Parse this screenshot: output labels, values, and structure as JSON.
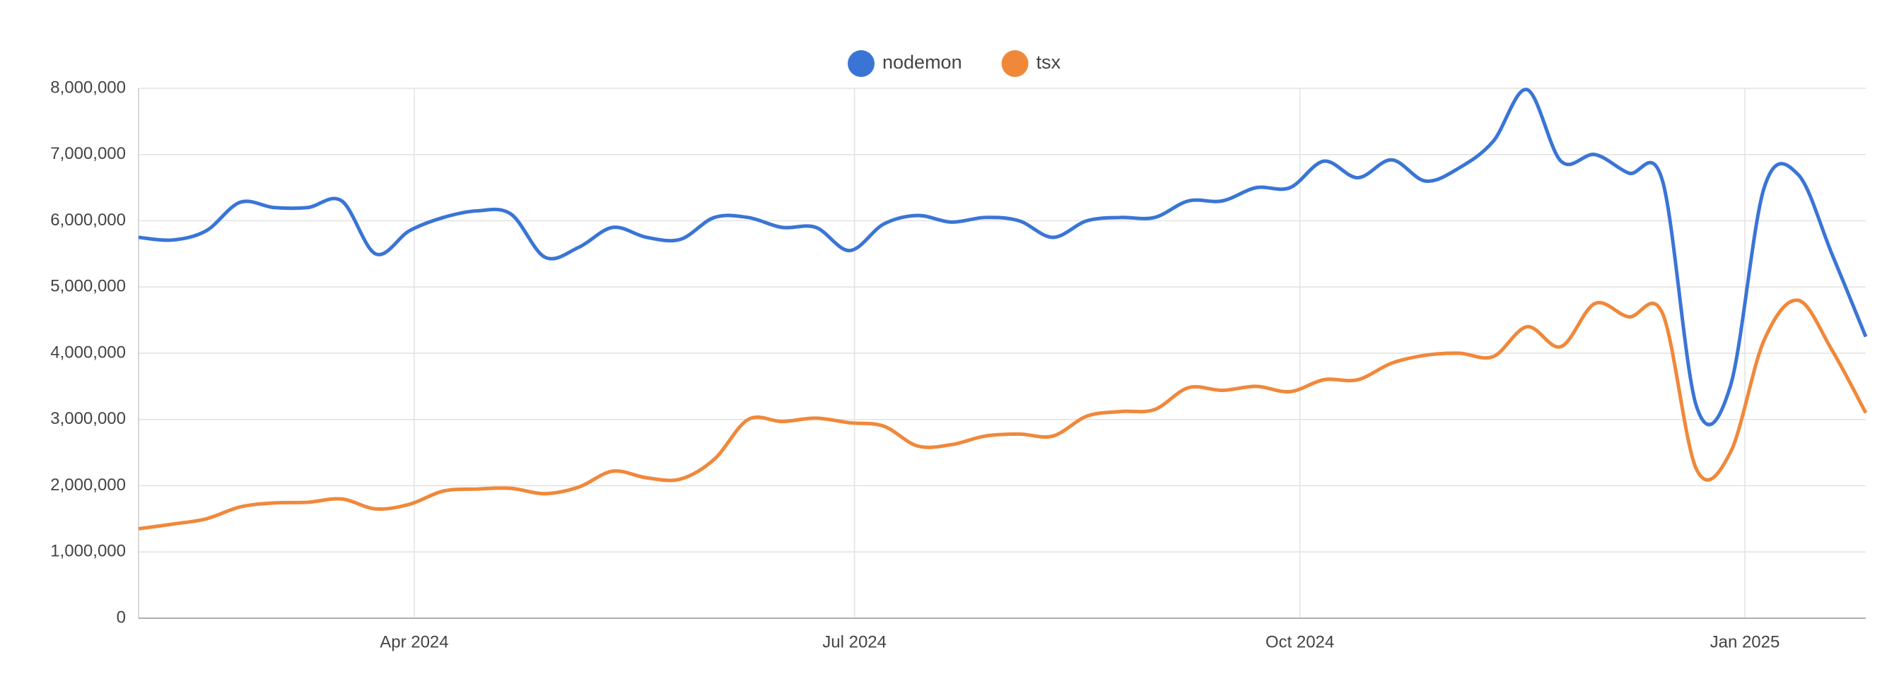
{
  "chart_data": {
    "type": "line",
    "categories": [
      null,
      null,
      null,
      null,
      null,
      null,
      null,
      null,
      null,
      null,
      null,
      null,
      null,
      null,
      null,
      null,
      null,
      null,
      null,
      null,
      null,
      null,
      null,
      null,
      null,
      null,
      null,
      null,
      null,
      null,
      null,
      null,
      null,
      null,
      null,
      null,
      null,
      null,
      null,
      null,
      null,
      null,
      null,
      null,
      null,
      null,
      null,
      null,
      null,
      null,
      null,
      null
    ],
    "series": [
      {
        "name": "nodemon",
        "color": "#3a75d6",
        "values": [
          5750000,
          5710000,
          5850000,
          6280000,
          6200000,
          6200000,
          6300000,
          5500000,
          5850000,
          6050000,
          6150000,
          6100000,
          5450000,
          5600000,
          5900000,
          5750000,
          5720000,
          6050000,
          6050000,
          5900000,
          5900000,
          5550000,
          5950000,
          6080000,
          5980000,
          6050000,
          6000000,
          5750000,
          6000000,
          6050000,
          6050000,
          6300000,
          6300000,
          6500000,
          6500000,
          6900000,
          6650000,
          6920000,
          6600000,
          6800000,
          7200000,
          7980000,
          6900000,
          7000000,
          6720000,
          6600000,
          3200000,
          3500000,
          6500000,
          6700000,
          5500000,
          4250000
        ]
      },
      {
        "name": "tsx",
        "color": "#f0883a",
        "values": [
          1350000,
          1420000,
          1500000,
          1680000,
          1740000,
          1750000,
          1800000,
          1650000,
          1720000,
          1920000,
          1950000,
          1960000,
          1880000,
          1980000,
          2220000,
          2120000,
          2100000,
          2400000,
          3000000,
          2970000,
          3020000,
          2950000,
          2900000,
          2600000,
          2620000,
          2750000,
          2780000,
          2750000,
          3050000,
          3120000,
          3150000,
          3480000,
          3440000,
          3500000,
          3420000,
          3600000,
          3600000,
          3850000,
          3970000,
          4000000,
          3950000,
          4400000,
          4100000,
          4750000,
          4550000,
          4600000,
          2250000,
          2500000,
          4200000,
          4800000,
          4050000,
          3100000
        ]
      }
    ],
    "xlim": [
      0,
      51
    ],
    "xticks": [
      {
        "value": 8.14,
        "label": "Apr 2024"
      },
      {
        "value": 21.14,
        "label": "Jul 2024"
      },
      {
        "value": 34.29,
        "label": "Oct 2024"
      },
      {
        "value": 47.43,
        "label": "Jan 2025"
      }
    ],
    "ylim": [
      0,
      8000000
    ],
    "yticks": [
      0,
      {
        "value": 1000000,
        "label": "1,000,000"
      },
      {
        "value": 2000000,
        "label": "2,000,000"
      },
      {
        "value": 3000000,
        "label": "3,000,000"
      },
      {
        "value": 4000000,
        "label": "4,000,000"
      },
      {
        "value": 5000000,
        "label": "5,000,000"
      },
      {
        "value": 6000000,
        "label": "6,000,000"
      },
      {
        "value": 7000000,
        "label": "7,000,000"
      },
      {
        "value": 8000000,
        "label": "8,000,000"
      }
    ],
    "grid": true,
    "legend": "top"
  }
}
